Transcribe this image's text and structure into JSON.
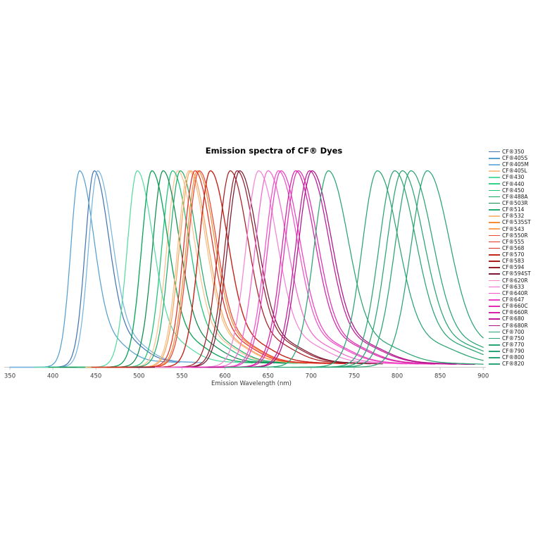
{
  "chart_data": {
    "type": "line",
    "title": "Emission spectra of CF® Dyes",
    "xlabel": "Emission Wavelength (nm)",
    "ylabel": "",
    "x_range": [
      350,
      900
    ],
    "x_ticks": [
      350,
      400,
      450,
      500,
      550,
      600,
      650,
      700,
      750,
      800,
      850,
      900
    ],
    "y_normalized": true,
    "y_range": [
      0,
      1
    ],
    "grid": false,
    "legend_position": "right",
    "axis_color": "#c8c8c8",
    "series": [
      {
        "name": "CF®350",
        "em_peak_nm": 448,
        "peak_intensity": 1.0,
        "color": "#4576b4"
      },
      {
        "name": "CF®405S",
        "em_peak_nm": 431,
        "peak_intensity": 1.0,
        "color": "#56a0d0"
      },
      {
        "name": "CF®405M",
        "em_peak_nm": 452,
        "peak_intensity": 1.0,
        "color": "#77b5de"
      },
      {
        "name": "CF®405L",
        "em_peak_nm": 545,
        "peak_intensity": 1.0,
        "color": "#fcc18e"
      },
      {
        "name": "CF®430",
        "em_peak_nm": 498,
        "peak_intensity": 1.0,
        "color": "#57dba2"
      },
      {
        "name": "CF®440",
        "em_peak_nm": 515,
        "peak_intensity": 1.0,
        "color": "#36d189"
      },
      {
        "name": "CF®450",
        "em_peak_nm": 539,
        "peak_intensity": 1.0,
        "color": "#1fc374"
      },
      {
        "name": "CF®488A",
        "em_peak_nm": 515,
        "peak_intensity": 1.0,
        "color": "#13a45d"
      },
      {
        "name": "CF®503R",
        "em_peak_nm": 528,
        "peak_intensity": 1.0,
        "color": "#0e8b4c"
      },
      {
        "name": "CF®514",
        "em_peak_nm": 548,
        "peak_intensity": 1.0,
        "color": "#22ad6e"
      },
      {
        "name": "CF®532",
        "em_peak_nm": 558,
        "peak_intensity": 1.0,
        "color": "#fcbd84"
      },
      {
        "name": "CF®535ST",
        "em_peak_nm": 568,
        "peak_intensity": 1.0,
        "color": "#f58d38"
      },
      {
        "name": "CF®543",
        "em_peak_nm": 560,
        "peak_intensity": 1.0,
        "color": "#f9a25c"
      },
      {
        "name": "CF®550R",
        "em_peak_nm": 570,
        "peak_intensity": 1.0,
        "color": "#ed4634"
      },
      {
        "name": "CF®555",
        "em_peak_nm": 565,
        "peak_intensity": 1.0,
        "color": "#e23127"
      },
      {
        "name": "CF®568",
        "em_peak_nm": 583,
        "peak_intensity": 1.0,
        "color": "#d62b20"
      },
      {
        "name": "CF®570",
        "em_peak_nm": 583,
        "peak_intensity": 1.0,
        "color": "#c4251c"
      },
      {
        "name": "CF®583",
        "em_peak_nm": 606,
        "peak_intensity": 1.0,
        "color": "#a81e20"
      },
      {
        "name": "CF®594",
        "em_peak_nm": 614,
        "peak_intensity": 1.0,
        "color": "#93202b"
      },
      {
        "name": "CF®594ST",
        "em_peak_nm": 617,
        "peak_intensity": 1.0,
        "color": "#7a1a36"
      },
      {
        "name": "CF®620R",
        "em_peak_nm": 639,
        "peak_intensity": 1.0,
        "color": "#f583d8"
      },
      {
        "name": "CF®633",
        "em_peak_nm": 650,
        "peak_intensity": 1.0,
        "color": "#f266cf"
      },
      {
        "name": "CF®640R",
        "em_peak_nm": 662,
        "peak_intensity": 1.0,
        "color": "#f450c9"
      },
      {
        "name": "CF®647",
        "em_peak_nm": 665,
        "peak_intensity": 1.0,
        "color": "#ed3fc0"
      },
      {
        "name": "CF®660C",
        "em_peak_nm": 685,
        "peak_intensity": 1.0,
        "color": "#e22db2"
      },
      {
        "name": "CF®660R",
        "em_peak_nm": 682,
        "peak_intensity": 1.0,
        "color": "#d522a6"
      },
      {
        "name": "CF®680",
        "em_peak_nm": 698,
        "peak_intensity": 1.0,
        "color": "#c21897"
      },
      {
        "name": "CF®680R",
        "em_peak_nm": 701,
        "peak_intensity": 1.0,
        "color": "#ae1189"
      },
      {
        "name": "CF®700",
        "em_peak_nm": 720,
        "peak_intensity": 1.0,
        "color": "#2ba473"
      },
      {
        "name": "CF®750",
        "em_peak_nm": 777,
        "peak_intensity": 1.0,
        "color": "#2ba473"
      },
      {
        "name": "CF®770",
        "em_peak_nm": 797,
        "peak_intensity": 1.0,
        "color": "#2ba473"
      },
      {
        "name": "CF®790",
        "em_peak_nm": 806,
        "peak_intensity": 1.0,
        "color": "#2ba473"
      },
      {
        "name": "CF®800",
        "em_peak_nm": 816,
        "peak_intensity": 1.0,
        "color": "#2ba473"
      },
      {
        "name": "CF®820",
        "em_peak_nm": 835,
        "peak_intensity": 1.0,
        "color": "#2ba473"
      }
    ]
  }
}
